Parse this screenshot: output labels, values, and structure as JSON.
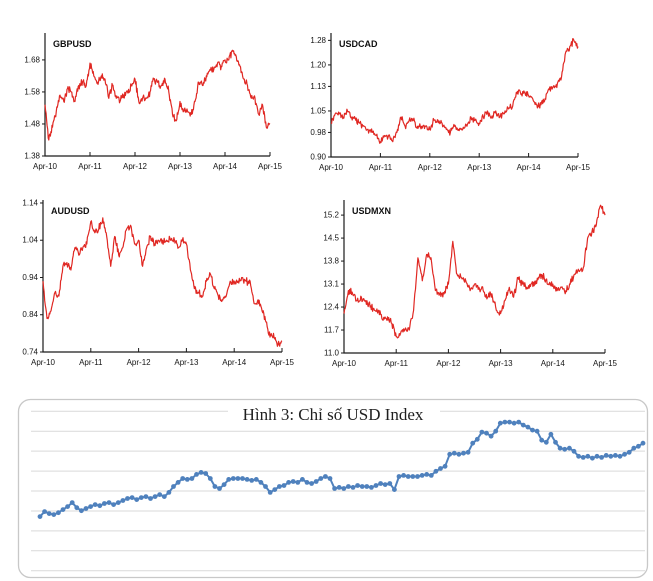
{
  "figure_caption": "Hình 3: Chỉ số USD Index",
  "colors": {
    "fx_line": "#e02823",
    "index_line": "#4f81bd",
    "axis": "#1a1a1a",
    "tick_label": "#151515",
    "gridline": "#d9d9d9",
    "chart_border": "#c8c8c8",
    "background": "#ffffff"
  },
  "chart_data": [
    {
      "type": "line",
      "id": "GBPUSD",
      "title": "GBPUSD",
      "line_color": "#e02823",
      "x_tick_labels": [
        "Apr-10",
        "Apr-11",
        "Apr-12",
        "Apr-13",
        "Apr-14",
        "Apr-15"
      ],
      "y_tick_labels": [
        "1.38",
        "1.48",
        "1.58",
        "1.68"
      ],
      "y_ticks": [
        1.38,
        1.48,
        1.58,
        1.68
      ],
      "ylim": [
        1.38,
        1.764
      ],
      "x_range": "monthly, Apr-2010 to Apr-2015 (61 points, estimated from plot)",
      "values": [
        1.54,
        1.43,
        1.47,
        1.52,
        1.57,
        1.55,
        1.59,
        1.58,
        1.55,
        1.6,
        1.61,
        1.6,
        1.67,
        1.63,
        1.61,
        1.63,
        1.62,
        1.56,
        1.6,
        1.56,
        1.55,
        1.57,
        1.58,
        1.6,
        1.62,
        1.55,
        1.56,
        1.56,
        1.58,
        1.62,
        1.61,
        1.6,
        1.62,
        1.58,
        1.51,
        1.49,
        1.55,
        1.52,
        1.52,
        1.51,
        1.55,
        1.61,
        1.6,
        1.63,
        1.65,
        1.65,
        1.67,
        1.66,
        1.68,
        1.68,
        1.71,
        1.69,
        1.66,
        1.62,
        1.6,
        1.56,
        1.56,
        1.51,
        1.54,
        1.47,
        1.48
      ],
      "grid": false,
      "legend": "none"
    },
    {
      "type": "line",
      "id": "USDCAD",
      "title": "USDCAD",
      "line_color": "#e02823",
      "x_tick_labels": [
        "Apr-10",
        "Apr-11",
        "Apr-12",
        "Apr-13",
        "Apr-14",
        "Apr-15"
      ],
      "y_tick_labels": [
        "0.90",
        "0.98",
        "1.05",
        "1.13",
        "1.20",
        "1.28"
      ],
      "y_ticks": [
        0.9,
        0.98,
        1.05,
        1.13,
        1.2,
        1.28
      ],
      "ylim": [
        0.9,
        1.304
      ],
      "x_range": "monthly, Apr-2010 to Apr-2015 (61 points, estimated from plot)",
      "values": [
        1.01,
        1.04,
        1.04,
        1.03,
        1.05,
        1.03,
        1.02,
        1.01,
        1.0,
        0.99,
        0.98,
        0.97,
        0.95,
        0.97,
        0.97,
        0.95,
        0.98,
        1.03,
        1.0,
        1.02,
        1.02,
        1.0,
        1.0,
        1.0,
        0.99,
        1.02,
        1.02,
        1.01,
        0.99,
        0.98,
        1.0,
        0.99,
        0.99,
        1.0,
        1.03,
        1.02,
        1.01,
        1.03,
        1.05,
        1.03,
        1.05,
        1.03,
        1.04,
        1.06,
        1.06,
        1.11,
        1.11,
        1.11,
        1.1,
        1.09,
        1.07,
        1.07,
        1.09,
        1.12,
        1.13,
        1.14,
        1.16,
        1.24,
        1.26,
        1.28,
        1.26
      ],
      "grid": false,
      "legend": "none"
    },
    {
      "type": "line",
      "id": "AUDUSD",
      "title": "AUDUSD",
      "line_color": "#e02823",
      "x_tick_labels": [
        "Apr-10",
        "Apr-11",
        "Apr-12",
        "Apr-13",
        "Apr-14",
        "Apr-15"
      ],
      "y_tick_labels": [
        "0.74",
        "0.84",
        "0.94",
        "1.04",
        "1.14"
      ],
      "y_ticks": [
        0.74,
        0.84,
        0.94,
        1.04,
        1.14
      ],
      "ylim": [
        0.74,
        1.148
      ],
      "x_range": "monthly, Apr-2010 to Apr-2015 (61 points, estimated from plot)",
      "values": [
        0.93,
        0.83,
        0.85,
        0.9,
        0.89,
        0.97,
        0.98,
        0.96,
        1.02,
        1.0,
        1.02,
        1.03,
        1.09,
        1.06,
        1.07,
        1.1,
        1.05,
        0.97,
        1.05,
        1.0,
        1.02,
        1.07,
        1.08,
        1.03,
        1.04,
        0.97,
        1.02,
        1.05,
        1.03,
        1.04,
        1.04,
        1.04,
        1.04,
        1.04,
        1.02,
        1.04,
        1.03,
        0.96,
        0.91,
        0.9,
        0.89,
        0.93,
        0.95,
        0.91,
        0.89,
        0.88,
        0.89,
        0.93,
        0.93,
        0.93,
        0.94,
        0.93,
        0.93,
        0.87,
        0.88,
        0.85,
        0.82,
        0.78,
        0.78,
        0.76,
        0.77
      ],
      "grid": false,
      "legend": "none"
    },
    {
      "type": "line",
      "id": "USDMXN",
      "title": "USDMXN",
      "line_color": "#e02823",
      "x_tick_labels": [
        "Apr-10",
        "Apr-11",
        "Apr-12",
        "Apr-13",
        "Apr-14",
        "Apr-15"
      ],
      "y_tick_labels": [
        "11.0",
        "11.7",
        "12.4",
        "13.1",
        "13.8",
        "14.5",
        "15.2"
      ],
      "y_ticks": [
        11.0,
        11.7,
        12.4,
        13.1,
        13.8,
        14.5,
        15.2
      ],
      "ylim": [
        11.0,
        15.66
      ],
      "x_range": "monthly, Apr-2010 to Apr-2015 (61 points, estimated from plot)",
      "values": [
        12.2,
        12.9,
        12.8,
        12.6,
        12.7,
        12.6,
        12.4,
        12.3,
        12.3,
        12.0,
        12.1,
        11.9,
        11.5,
        11.6,
        11.7,
        11.7,
        12.3,
        13.9,
        13.2,
        14.0,
        13.9,
        12.9,
        12.8,
        12.8,
        13.1,
        14.4,
        13.4,
        13.3,
        13.2,
        12.9,
        13.1,
        13.0,
        12.9,
        12.7,
        12.8,
        12.3,
        12.2,
        12.6,
        13.0,
        12.7,
        13.3,
        13.1,
        13.0,
        13.1,
        13.1,
        13.4,
        13.3,
        13.1,
        13.1,
        12.9,
        13.0,
        12.9,
        13.1,
        13.4,
        13.5,
        13.6,
        14.5,
        14.7,
        14.9,
        15.5,
        15.2
      ],
      "grid": false,
      "legend": "none"
    },
    {
      "type": "line",
      "id": "USD_INDEX",
      "title": "Hình 3: Chỉ số USD Index",
      "line_color": "#4f81bd",
      "marker": "circle",
      "grid": "horizontal",
      "axis_labels": "none shown in figure",
      "ylim": [
        0,
        100
      ],
      "y_unit": "percent of plot height (figure displays no numeric axis scale)",
      "values": [
        34.3,
        37.1,
        36.0,
        35.4,
        36.5,
        38.2,
        39.9,
        42.1,
        39.3,
        37.6,
        38.8,
        39.9,
        41.0,
        40.4,
        41.6,
        42.1,
        41.0,
        42.1,
        43.3,
        44.4,
        44.9,
        43.8,
        44.9,
        45.5,
        44.4,
        45.5,
        46.6,
        45.5,
        47.8,
        51.1,
        53.4,
        55.6,
        55.1,
        55.6,
        57.9,
        59.0,
        58.4,
        55.6,
        51.1,
        50.0,
        52.2,
        55.1,
        55.6,
        55.6,
        55.6,
        55.1,
        54.5,
        55.1,
        53.4,
        51.1,
        47.8,
        49.4,
        51.1,
        51.7,
        53.4,
        53.9,
        53.4,
        55.1,
        53.4,
        52.8,
        53.9,
        55.6,
        56.7,
        55.6,
        50.0,
        50.6,
        50.0,
        51.1,
        50.6,
        51.7,
        51.1,
        51.1,
        50.6,
        51.7,
        52.8,
        52.2,
        52.8,
        49.4,
        56.7,
        57.3,
        56.7,
        56.7,
        56.7,
        57.3,
        57.9,
        57.3,
        59.6,
        61.2,
        62.4,
        69.1,
        69.7,
        69.1,
        69.7,
        70.2,
        75.3,
        77.5,
        81.5,
        80.9,
        79.2,
        82.0,
        86.5,
        87.1,
        87.1,
        86.5,
        87.1,
        85.4,
        84.3,
        82.6,
        82.0,
        77.0,
        75.8,
        80.3,
        75.8,
        72.5,
        71.9,
        72.5,
        70.8,
        68.0,
        67.4,
        68.0,
        66.9,
        68.0,
        67.4,
        68.5,
        68.0,
        68.5,
        68.0,
        69.1,
        70.2,
        72.5,
        73.6,
        75.3
      ]
    }
  ]
}
